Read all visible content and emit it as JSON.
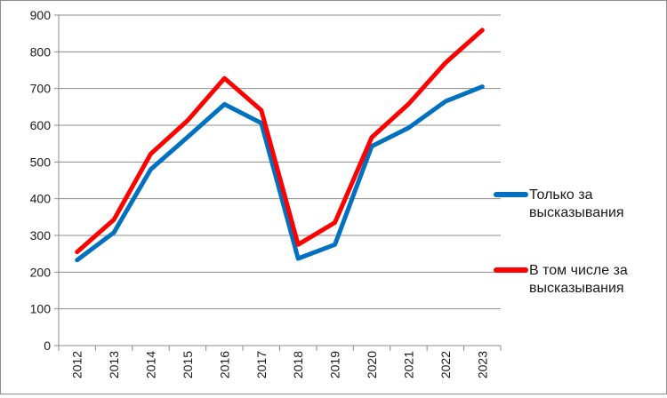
{
  "chart_data": {
    "type": "line",
    "categories": [
      "2012",
      "2013",
      "2014",
      "2015",
      "2016",
      "2017",
      "2018",
      "2019",
      "2020",
      "2021",
      "2022",
      "2023"
    ],
    "series": [
      {
        "name": "Только за высказывания",
        "color": "#0070c0",
        "values": [
          233,
          308,
          480,
          568,
          657,
          606,
          237,
          275,
          543,
          593,
          665,
          705
        ]
      },
      {
        "name": "В том числе за высказывания",
        "color": "#ff0000",
        "values": [
          255,
          343,
          522,
          613,
          728,
          641,
          275,
          335,
          567,
          658,
          770,
          859
        ]
      }
    ],
    "ylim": [
      0,
      900
    ],
    "yticks": [
      0,
      100,
      200,
      300,
      400,
      500,
      600,
      700,
      800,
      900
    ],
    "grid": true,
    "legend_position": "right",
    "legend": [
      {
        "lines": [
          "Только за",
          "высказывания"
        ]
      },
      {
        "lines": [
          "В том числе за",
          "высказывания"
        ]
      }
    ]
  }
}
